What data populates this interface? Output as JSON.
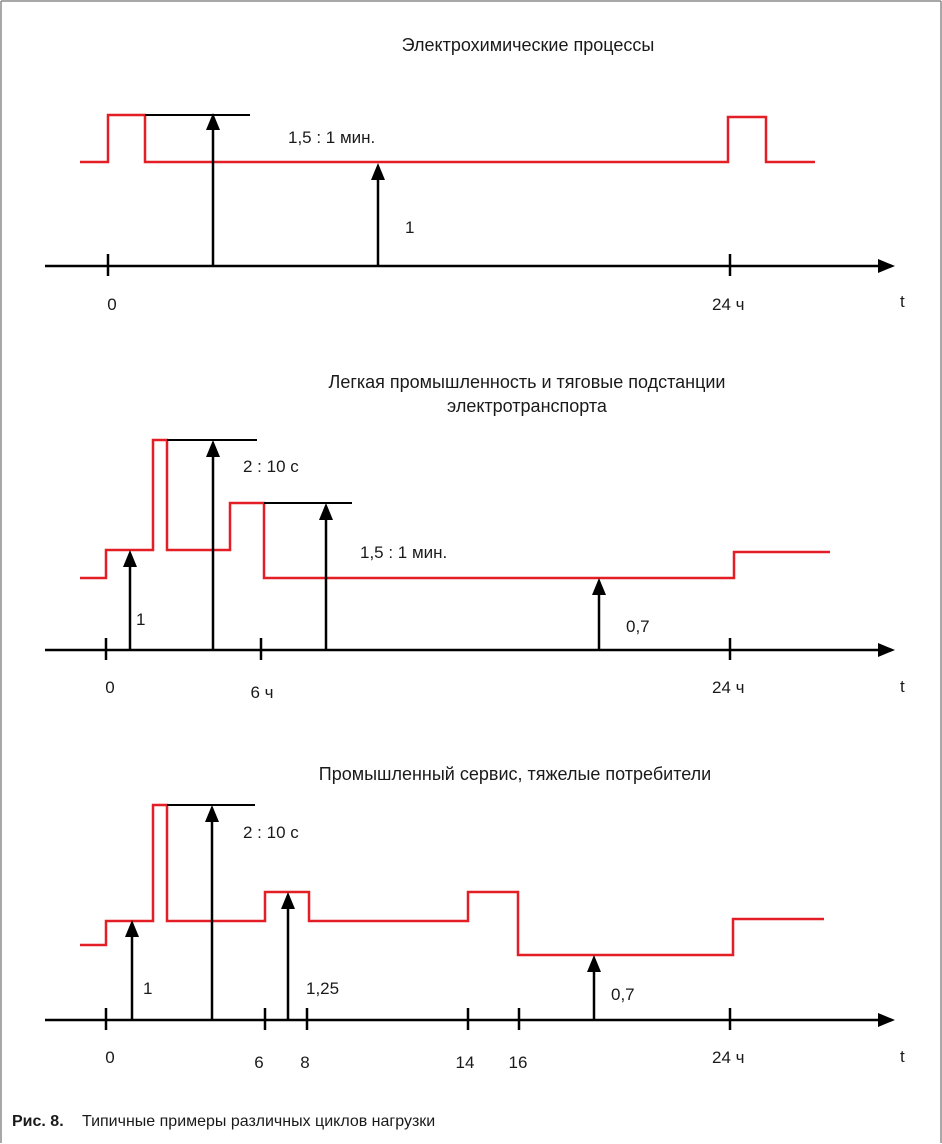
{
  "caption": {
    "prefix": "Рис. 8.",
    "text": "Типичные примеры различных циклов нагрузки"
  },
  "axis_symbol": "t",
  "colors": {
    "load_curve": "#e31e24",
    "axis": "#000000",
    "border": "#8c8c8c"
  },
  "diagrams": [
    {
      "title_lines": [
        "Электрохимические процессы"
      ],
      "tick_labels": [
        "0",
        "24 ч"
      ],
      "ratio_labels": [
        "1,5 : 1 мин."
      ],
      "level_labels": [
        "1"
      ]
    },
    {
      "title_lines": [
        "Легкая промышленность и тяговые подстанции",
        "электротранспорта"
      ],
      "tick_labels": [
        "0",
        "6 ч",
        "24 ч"
      ],
      "ratio_labels": [
        "2 : 10 с",
        "1,5 : 1 мин."
      ],
      "level_labels": [
        "1",
        "0,7"
      ]
    },
    {
      "title_lines": [
        "Промышленный сервис, тяжелые потребители"
      ],
      "tick_labels": [
        "0",
        "6",
        "8",
        "14",
        "16",
        "24 ч"
      ],
      "ratio_labels": [
        "2 : 10 с"
      ],
      "level_labels": [
        "1",
        "1,25",
        "0,7"
      ]
    }
  ]
}
